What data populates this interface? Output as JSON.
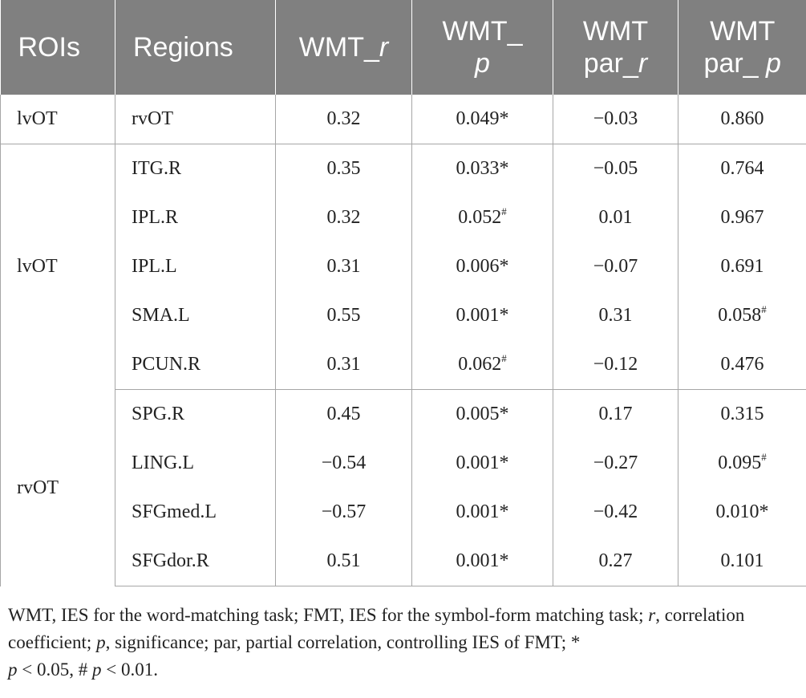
{
  "table": {
    "headers": {
      "rois": "ROIs",
      "regions": "Regions",
      "wmt_r_prefix": "WMT_",
      "wmt_r_italic": "r",
      "wmt_p_prefix": "WMT_",
      "wmt_p_italic": "p",
      "par_r_line1": "WMT",
      "par_r_prefix": "par_",
      "par_r_italic": "r",
      "par_p_line1": "WMT",
      "par_p_prefix": "par_ ",
      "par_p_italic": "p"
    },
    "groups": [
      {
        "roi": "lvOT",
        "rows": [
          {
            "region": "rvOT",
            "wmt_r": "0.32",
            "wmt_p": "0.049*",
            "wmt_p_sup": "",
            "par_r": "−0.03",
            "par_p": "0.860",
            "par_p_sup": ""
          }
        ]
      },
      {
        "roi": "lvOT",
        "rows": [
          {
            "region": "ITG.R",
            "wmt_r": "0.35",
            "wmt_p": "0.033*",
            "wmt_p_sup": "",
            "par_r": "−0.05",
            "par_p": "0.764",
            "par_p_sup": ""
          },
          {
            "region": "IPL.R",
            "wmt_r": "0.32",
            "wmt_p": "0.052",
            "wmt_p_sup": "#",
            "par_r": "0.01",
            "par_p": "0.967",
            "par_p_sup": ""
          },
          {
            "region": "IPL.L",
            "wmt_r": "0.31",
            "wmt_p": "0.006*",
            "wmt_p_sup": "",
            "par_r": "−0.07",
            "par_p": "0.691",
            "par_p_sup": ""
          },
          {
            "region": "SMA.L",
            "wmt_r": "0.55",
            "wmt_p": "0.001*",
            "wmt_p_sup": "",
            "par_r": "0.31",
            "par_p": "0.058",
            "par_p_sup": "#"
          },
          {
            "region": "PCUN.R",
            "wmt_r": "0.31",
            "wmt_p": "0.062",
            "wmt_p_sup": "#",
            "par_r": "−0.12",
            "par_p": "0.476",
            "par_p_sup": ""
          }
        ]
      },
      {
        "roi": "rvOT",
        "rows": [
          {
            "region": "SPG.R",
            "wmt_r": "0.45",
            "wmt_p": "0.005*",
            "wmt_p_sup": "",
            "par_r": "0.17",
            "par_p": "0.315",
            "par_p_sup": ""
          },
          {
            "region": "LING.L",
            "wmt_r": "−0.54",
            "wmt_p": "0.001*",
            "wmt_p_sup": "",
            "par_r": "−0.27",
            "par_p": "0.095",
            "par_p_sup": "#"
          },
          {
            "region": "SFGmed.L",
            "wmt_r": "−0.57",
            "wmt_p": "0.001*",
            "wmt_p_sup": "",
            "par_r": "−0.42",
            "par_p": "0.010*",
            "par_p_sup": ""
          },
          {
            "region": "SFGdor.R",
            "wmt_r": "0.51",
            "wmt_p": "0.001*",
            "wmt_p_sup": "",
            "par_r": "0.27",
            "par_p": "0.101",
            "par_p_sup": ""
          }
        ]
      }
    ]
  },
  "notes": {
    "s1": "WMT, IES for the word-matching task; FMT, IES for the symbol-form matching task; ",
    "r_sym": "r",
    "s2": ", correlation coefficient; ",
    "p_sym": "p",
    "s3": ", significance; par, partial correlation, controlling IES of FMT; * ",
    "p_sym2": "p",
    "s4": " < 0.05, # ",
    "p_sym3": "p",
    "s5": " < 0.01."
  }
}
